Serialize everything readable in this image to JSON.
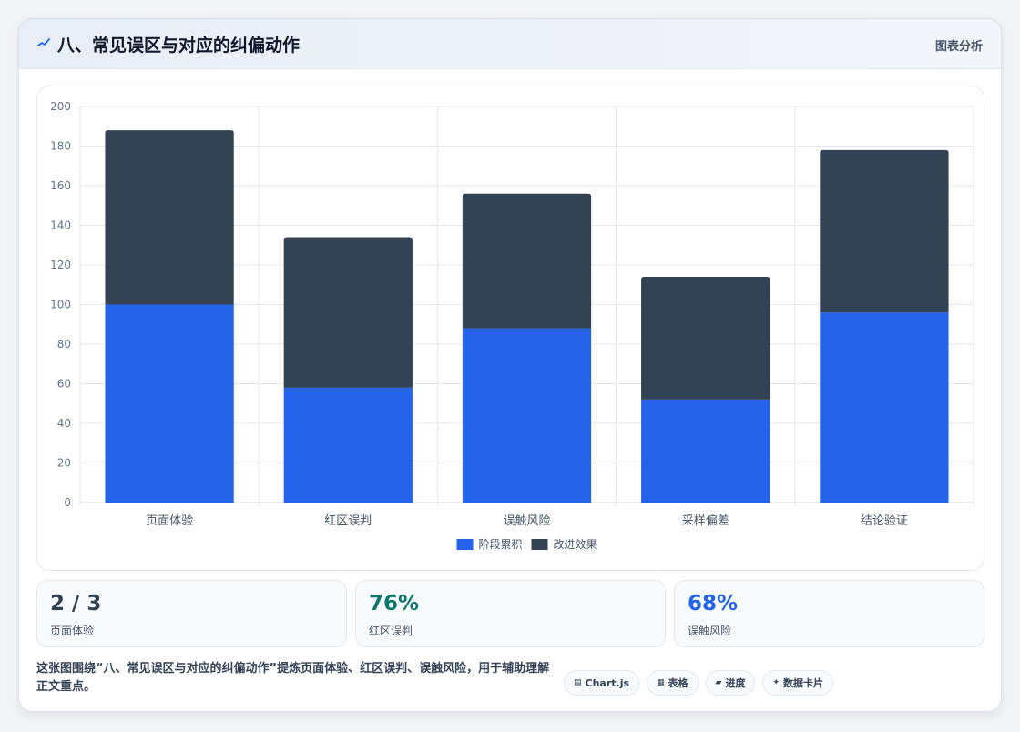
{
  "header": {
    "icon": "sparkline-icon",
    "title": "八、常见误区与对应的纠偏动作",
    "tag": "图表分析"
  },
  "chart_data": {
    "type": "bar",
    "stacked": true,
    "categories": [
      "页面体验",
      "红区误判",
      "误触风险",
      "采样偏差",
      "结论验证"
    ],
    "series": [
      {
        "name": "阶段累积",
        "color": "#2563eb",
        "values": [
          100,
          58,
          88,
          52,
          96
        ]
      },
      {
        "name": "改进效果",
        "color": "#334155",
        "values": [
          88,
          76,
          68,
          62,
          82
        ]
      }
    ],
    "ylim": [
      0,
      200
    ],
    "yticks": [
      0,
      20,
      40,
      60,
      80,
      100,
      120,
      140,
      160,
      180,
      200
    ],
    "grid": true,
    "legend_position": "bottom"
  },
  "stats": [
    {
      "value": "2 / 3",
      "label": "页面体验",
      "color": "#334155"
    },
    {
      "value": "76%",
      "label": "红区误判",
      "color": "#0f766e"
    },
    {
      "value": "68%",
      "label": "误触风险",
      "color": "#2563eb"
    }
  ],
  "caption": "这张图围绕“八、常见误区与对应的纠偏动作”提炼页面体验、红区误判、误触风险，用于辅助理解正文重点。",
  "chips": [
    {
      "icon": "chart-icon",
      "glyph": "▤",
      "label": "Chart.js"
    },
    {
      "icon": "table-icon",
      "glyph": "▦",
      "label": "表格"
    },
    {
      "icon": "folder-icon",
      "glyph": "▰",
      "label": "进度"
    },
    {
      "icon": "sparkle-icon",
      "glyph": "✦",
      "label": "数据卡片"
    }
  ]
}
